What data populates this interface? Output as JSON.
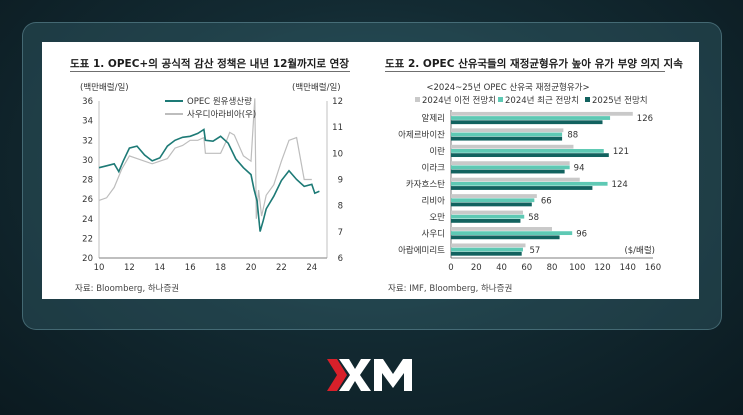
{
  "chart_data": [
    {
      "type": "line",
      "title": "도표 1. OPEC+의 공식적 감산 정책은 내년 12월까지로 연장",
      "ylabel_left": "(백만배럴/일)",
      "ylabel_right": "(백만배럴/일)",
      "ylim_left": [
        20,
        36
      ],
      "ylim_right": [
        6,
        12
      ],
      "xlim": [
        10,
        25
      ],
      "yticks_left": [
        "20",
        "22",
        "24",
        "26",
        "28",
        "30",
        "32",
        "34",
        "36"
      ],
      "yticks_right": [
        "6",
        "7",
        "8",
        "9",
        "10",
        "11",
        "12"
      ],
      "xticks": [
        "10",
        "12",
        "14",
        "16",
        "18",
        "20",
        "22",
        "24"
      ],
      "grid": false,
      "legend_position": "top-right",
      "series": [
        {
          "name": "OPEC 원유생산량",
          "axis": "left",
          "color": "#1d7a76",
          "x": [
            10,
            10.5,
            11,
            11.3,
            11.6,
            12,
            12.5,
            13,
            13.5,
            14,
            14.5,
            15,
            15.5,
            16,
            16.5,
            16.9,
            17,
            17.5,
            18,
            18.5,
            19,
            19.5,
            20,
            20.2,
            20.4,
            20.6,
            20.8,
            21,
            21.5,
            22,
            22.5,
            23,
            23.5,
            24,
            24.2,
            24.5
          ],
          "y": [
            29.2,
            29.4,
            29.6,
            28.8,
            29.9,
            31.2,
            31.4,
            30.5,
            29.9,
            30.2,
            31.4,
            32.0,
            32.3,
            32.4,
            32.7,
            33.1,
            32.0,
            31.9,
            32.4,
            31.7,
            30.1,
            29.2,
            28.5,
            27.0,
            25.8,
            22.7,
            23.8,
            25.0,
            26.3,
            27.9,
            28.9,
            28.0,
            27.3,
            27.5,
            26.6,
            26.8
          ]
        },
        {
          "name": "사우디아라비아(우)",
          "axis": "right",
          "color": "#bdbdbd",
          "x": [
            10,
            10.5,
            11,
            11.5,
            12,
            12.5,
            13,
            13.5,
            14,
            14.5,
            15,
            15.5,
            16,
            16.5,
            16.9,
            17,
            17.5,
            18,
            18.4,
            18.6,
            18.9,
            19.5,
            20,
            20.25,
            20.35,
            20.5,
            20.7,
            21,
            21.5,
            22,
            22.5,
            23,
            23.5,
            24
          ],
          "y": [
            8.2,
            8.3,
            8.7,
            9.4,
            9.9,
            9.8,
            9.7,
            9.6,
            9.7,
            9.8,
            10.2,
            10.3,
            10.5,
            10.5,
            10.6,
            10.0,
            10.0,
            10.0,
            10.5,
            10.8,
            10.7,
            9.9,
            9.7,
            12.1,
            7.5,
            8.6,
            7.6,
            8.4,
            8.8,
            9.7,
            10.5,
            10.6,
            9.0,
            9.0
          ]
        }
      ],
      "source": "자료: Bloomberg, 하나증권"
    },
    {
      "type": "bar",
      "orientation": "horizontal",
      "title": "도표 2. OPEC 산유국들의 재정균형유가 높아 유가 부양 의지 지속",
      "subtitle": "<2024~25년 OPEC 산유국 재정균형유가>",
      "unit_label": "($/배럴)",
      "categories": [
        "알제리",
        "아제르바이잔",
        "이란",
        "이라크",
        "카자흐스탄",
        "리비아",
        "오만",
        "사우디",
        "아랍에미리트"
      ],
      "xlim": [
        0,
        160
      ],
      "xticks": [
        "0",
        "20",
        "40",
        "60",
        "80",
        "100",
        "120",
        "140",
        "160"
      ],
      "legend_position": "top",
      "series": [
        {
          "name": "2024년 이전 전망치",
          "color": "#c9c9c9",
          "values": [
            144,
            89,
            97,
            94,
            102,
            68,
            57,
            80,
            59
          ]
        },
        {
          "name": "2024년 최근 전망치",
          "color": "#5ec9b4",
          "values": [
            126,
            88,
            121,
            94,
            124,
            66,
            58,
            96,
            57
          ]
        },
        {
          "name": "2025년 전망치",
          "color": "#12625f",
          "values": [
            120,
            88,
            125,
            90,
            112,
            64,
            55,
            86,
            56
          ]
        }
      ],
      "data_labels": [
        "126",
        "88",
        "121",
        "94",
        "124",
        "66",
        "58",
        "96",
        "57"
      ],
      "source": "자료: IMF, Bloomberg, 하나증권"
    }
  ],
  "brand": {
    "logo_text": "XM",
    "accent_color": "#d8202a"
  }
}
